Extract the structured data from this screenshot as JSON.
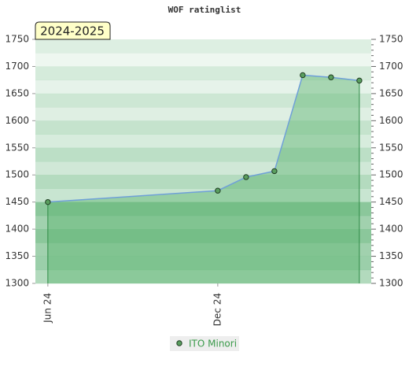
{
  "chart_data": {
    "type": "line",
    "title": "WOF ratinglist",
    "annotation": "2024-2025",
    "x": [
      0,
      6,
      7,
      8,
      9,
      10,
      11
    ],
    "xlim": [
      -0.44,
      11.42
    ],
    "xticks": [
      {
        "value": 0,
        "label": "Jun 24"
      },
      {
        "value": 6,
        "label": "Dec 24"
      }
    ],
    "series": [
      {
        "name": "ITO Minori",
        "color": "#5a9e5f",
        "values": [
          1450,
          1471,
          1496,
          1507,
          1684,
          1680,
          1674
        ]
      }
    ],
    "ylim": [
      1300,
      1750
    ],
    "yticks": [
      1300,
      1350,
      1400,
      1450,
      1500,
      1550,
      1600,
      1650,
      1700,
      1750
    ],
    "y2lim": [
      1300,
      1750
    ],
    "y2ticks": [
      1300,
      1350,
      1400,
      1450,
      1500,
      1550,
      1600,
      1650,
      1700,
      1750
    ]
  }
}
